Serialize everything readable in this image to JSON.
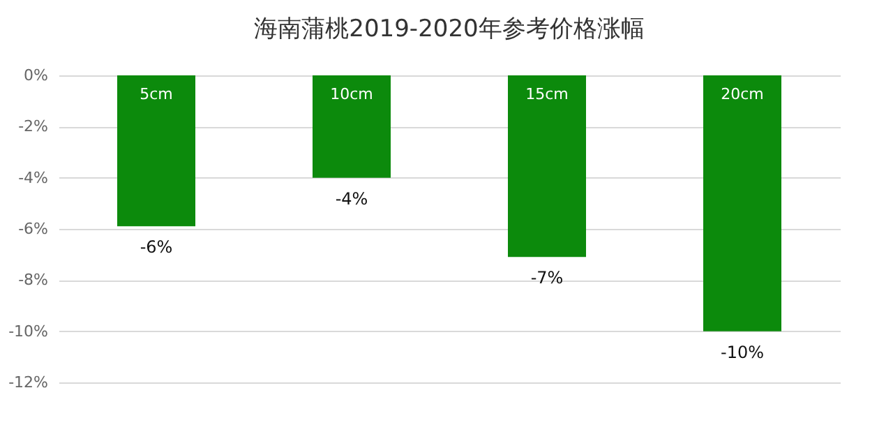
{
  "chart_data": {
    "type": "bar",
    "title": "海南蒲桃2019-2020年参考价格涨幅",
    "categories": [
      "5cm",
      "10cm",
      "15cm",
      "20cm"
    ],
    "values": [
      -5.9,
      -4.0,
      -7.1,
      -10.0
    ],
    "value_labels": [
      "-6%",
      "-4%",
      "-7%",
      "-10%"
    ],
    "color": "#0c8a0c",
    "ylim": [
      -12,
      0
    ],
    "yticks": [
      {
        "value": 0,
        "label": "0%"
      },
      {
        "value": -2,
        "label": "-2%"
      },
      {
        "value": -4,
        "label": "-4%"
      },
      {
        "value": -6,
        "label": "-6%"
      },
      {
        "value": -8,
        "label": "-8%"
      },
      {
        "value": -10,
        "label": "-10%"
      },
      {
        "value": -12,
        "label": "-12%"
      }
    ],
    "grid": "y"
  }
}
